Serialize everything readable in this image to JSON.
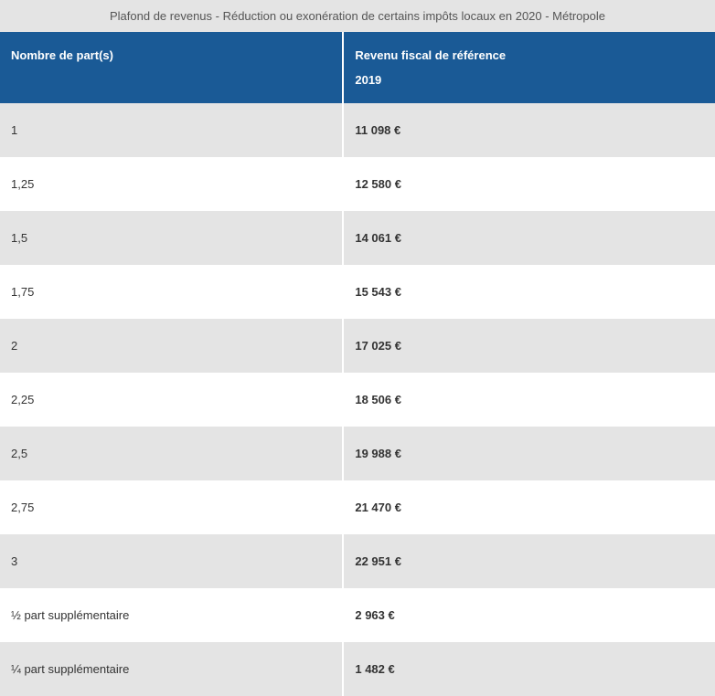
{
  "table": {
    "caption": "Plafond de revenus - Réduction ou exonération de certains impôts locaux en 2020 - Métropole",
    "columns": [
      {
        "key": "parts",
        "label": "Nombre de part(s)",
        "label2": ""
      },
      {
        "key": "value",
        "label": "Revenu fiscal de référence",
        "label2": "2019"
      }
    ],
    "rows": [
      {
        "parts": "1",
        "value": "11 098 €"
      },
      {
        "parts": "1,25",
        "value": "12 580 €"
      },
      {
        "parts": "1,5",
        "value": "14 061 €"
      },
      {
        "parts": "1,75",
        "value": "15 543 €"
      },
      {
        "parts": "2",
        "value": "17 025 €"
      },
      {
        "parts": "2,25",
        "value": "18 506 €"
      },
      {
        "parts": "2,5",
        "value": "19 988 €"
      },
      {
        "parts": "2,75",
        "value": "21 470 €"
      },
      {
        "parts": "3",
        "value": "22 951 €"
      },
      {
        "parts": "½ part supplémentaire",
        "value": "2 963 €"
      },
      {
        "parts": "¼ part supplémentaire",
        "value": "1 482 €"
      }
    ],
    "styling": {
      "header_bg": "#1a5a96",
      "header_text": "#ffffff",
      "row_odd_bg": "#e4e4e4",
      "row_even_bg": "#ffffff",
      "caption_bg": "#e4e4e4",
      "caption_text": "#555555",
      "cell_text": "#333333",
      "border_color": "#ffffff",
      "font_size_header": 13,
      "font_size_cell": 13,
      "font_size_caption": 13,
      "value_font_weight": "bold",
      "cell_padding_v": 22,
      "cell_padding_h": 12
    }
  }
}
